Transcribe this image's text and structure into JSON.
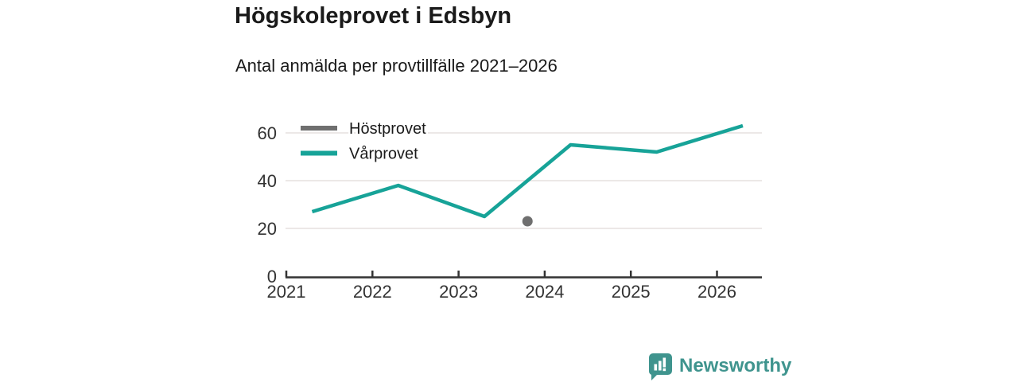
{
  "header": {
    "title": "Högskoleprovet i Edsbyn",
    "subtitle": "Antal anmälda per provtillfälle 2021–2026"
  },
  "chart_data": {
    "type": "line",
    "title": "Högskoleprovet i Edsbyn",
    "subtitle": "Antal anmälda per provtillfälle 2021–2026",
    "xlabel": "",
    "ylabel": "",
    "x_ticks": [
      2021,
      2022,
      2023,
      2024,
      2025,
      2026
    ],
    "y_ticks": [
      0,
      20,
      40,
      60
    ],
    "xlim": [
      2021,
      2026.55
    ],
    "ylim": [
      0,
      69
    ],
    "grid": "horizontal-only",
    "legend_position": "top-left-inside",
    "axis_color": "#333333",
    "grid_color": "#E5E0DF",
    "series": [
      {
        "name": "Höstprovet",
        "color": "#6F6F6F",
        "style": "point",
        "points": [
          {
            "x": 2023.8,
            "y": 23
          }
        ]
      },
      {
        "name": "Vårprovet",
        "color": "#17A398",
        "style": "line",
        "years": [
          2021,
          2022,
          2023,
          2024,
          2025,
          2026
        ],
        "values": [
          27,
          38,
          25,
          55,
          52,
          63
        ],
        "points": [
          {
            "x": 2021.3,
            "y": 27
          },
          {
            "x": 2022.3,
            "y": 38
          },
          {
            "x": 2023.3,
            "y": 25
          },
          {
            "x": 2024.3,
            "y": 55
          },
          {
            "x": 2025.3,
            "y": 52
          },
          {
            "x": 2026.3,
            "y": 63
          }
        ]
      }
    ]
  },
  "footer": {
    "brand": "Newsworthy",
    "brand_color": "#3F948E"
  }
}
